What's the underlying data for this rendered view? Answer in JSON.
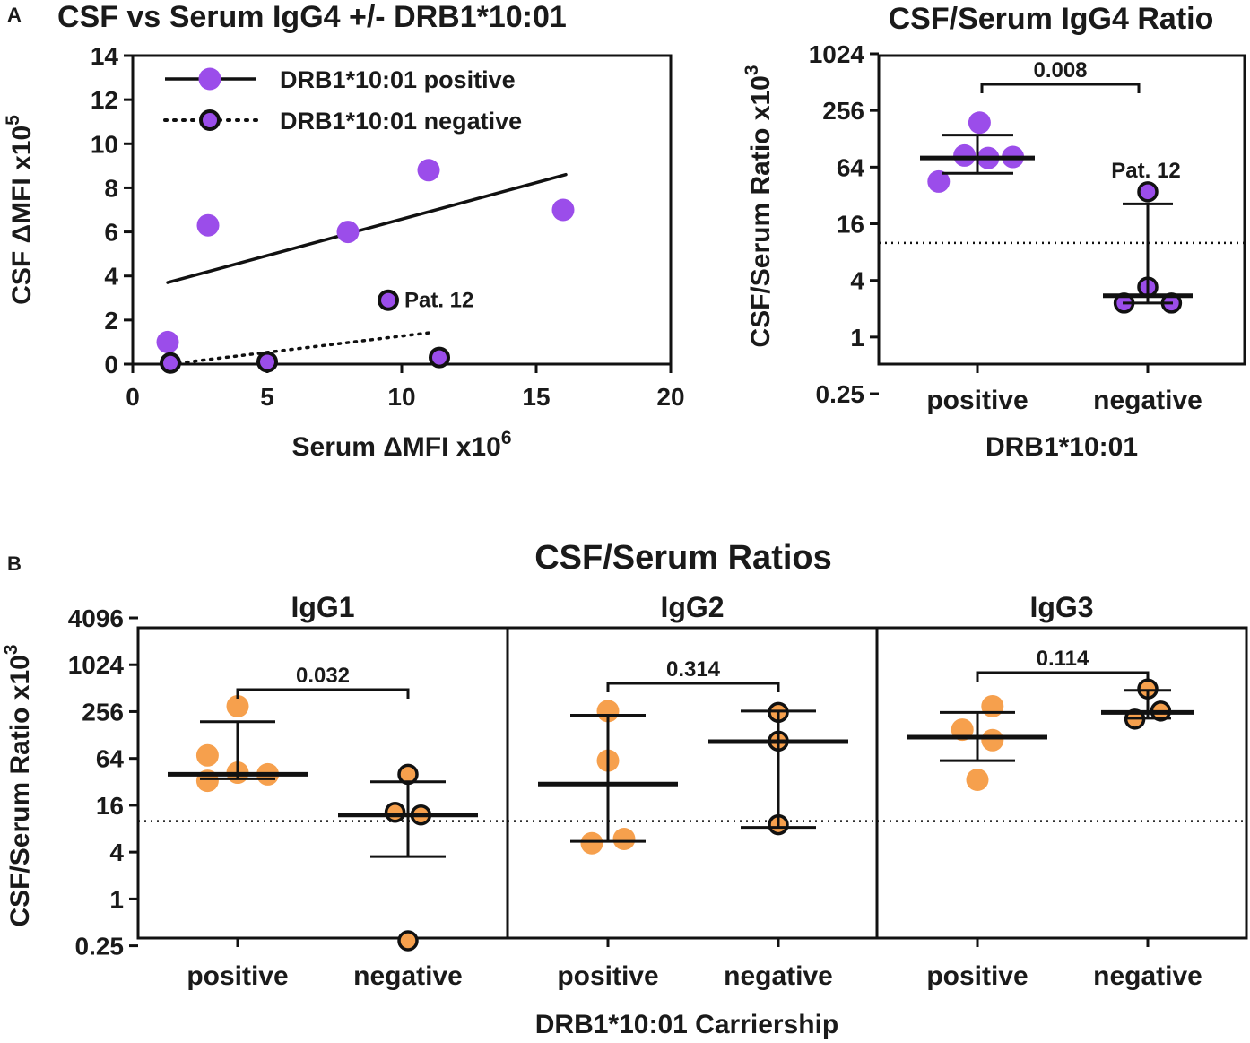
{
  "colors": {
    "purple": "#9b4dea",
    "orange": "#f6a04d",
    "outline": "#111111",
    "axis": "#111111"
  },
  "panel_a_label": "A",
  "panel_b_label": "B",
  "chart_data": [
    {
      "id": "scatter",
      "type": "scatter",
      "title": "CSF vs Serum IgG4 +/- DRB1*10:01",
      "xlabel": "Serum ΔMFI  x10",
      "xlabel_exp": "6",
      "ylabel": "CSF ΔMFI  x10",
      "ylabel_exp": "5",
      "xlim": [
        0,
        20
      ],
      "ylim": [
        0,
        14
      ],
      "xticks": [
        0,
        5,
        10,
        15,
        20
      ],
      "yticks": [
        0,
        2,
        4,
        6,
        8,
        10,
        12,
        14
      ],
      "legend_position": "top-left",
      "annotation": {
        "text": "Pat. 12",
        "x": 9.5,
        "y": 2.9
      },
      "series": [
        {
          "name": "DRB1*10:01 positive",
          "style": "solid",
          "points": [
            {
              "x": 1.3,
              "y": 1.0
            },
            {
              "x": 2.8,
              "y": 6.3
            },
            {
              "x": 8.0,
              "y": 6.0
            },
            {
              "x": 11.0,
              "y": 8.8
            },
            {
              "x": 16.0,
              "y": 7.0
            }
          ],
          "fit": {
            "x": [
              1.3,
              16.1
            ],
            "y": [
              3.7,
              8.6
            ]
          }
        },
        {
          "name": "DRB1*10:01 negative",
          "style": "dotted",
          "points": [
            {
              "x": 1.4,
              "y": 0.05
            },
            {
              "x": 5.0,
              "y": 0.1
            },
            {
              "x": 9.5,
              "y": 2.9
            },
            {
              "x": 11.4,
              "y": 0.3
            }
          ],
          "fit": {
            "x": [
              1.4,
              11.2
            ],
            "y": [
              0.0,
              1.45
            ]
          }
        }
      ]
    },
    {
      "id": "igg4ratio",
      "type": "scatter",
      "title": "CSF/Serum IgG4 Ratio",
      "ylabel": "CSF/Serum Ratio x10",
      "ylabel_exp": "3",
      "xlabel": "DRB1*10:01",
      "yscale": "log2",
      "ylim": [
        0.18,
        1024
      ],
      "yticks": [
        0.25,
        1,
        4,
        16,
        64,
        256,
        1024
      ],
      "ytick_labels": [
        "0.25",
        "1",
        "4",
        "16",
        "64",
        "256",
        "1024"
      ],
      "categories": [
        "positive",
        "negative"
      ],
      "threshold": 10,
      "pvalue": "0.008",
      "annotation": {
        "text": "Pat. 12",
        "category": "negative",
        "y": 35
      },
      "groups": [
        {
          "name": "positive",
          "median": 80,
          "q1": 55,
          "q3": 140,
          "points": [
            {
              "dx": -0.36,
              "y": 45
            },
            {
              "dx": -0.12,
              "y": 85
            },
            {
              "dx": 0.02,
              "y": 190
            },
            {
              "dx": 0.1,
              "y": 80
            },
            {
              "dx": 0.33,
              "y": 82
            }
          ]
        },
        {
          "name": "negative",
          "median": 2.75,
          "q1": 2.3,
          "q3": 26,
          "points": [
            {
              "dx": -0.22,
              "y": 2.3
            },
            {
              "dx": 0.0,
              "y": 3.4
            },
            {
              "dx": 0.22,
              "y": 2.3
            },
            {
              "dx": 0.0,
              "y": 35
            }
          ]
        }
      ]
    },
    {
      "id": "ratios",
      "type": "scatter",
      "title": "CSF/Serum Ratios",
      "ylabel": "CSF/Serum Ratio x10",
      "ylabel_exp": "3",
      "xlabel": "DRB1*10:01 Carriership",
      "yscale": "log2",
      "ylim": [
        0.2,
        4096
      ],
      "yticks": [
        0.25,
        1,
        4,
        16,
        64,
        256,
        1024,
        4096
      ],
      "ytick_labels": [
        "0.25",
        "1",
        "4",
        "16",
        "64",
        "256",
        "1024",
        "4096"
      ],
      "threshold": 10,
      "categories": [
        "positive",
        "negative"
      ],
      "panels": [
        {
          "name": "IgG1",
          "pvalue": "0.032",
          "groups": [
            {
              "name": "positive",
              "median": 40,
              "q1": 35,
              "q3": 190,
              "points": [
                {
                  "dx": -0.28,
                  "y": 70
                },
                {
                  "dx": -0.28,
                  "y": 33
                },
                {
                  "dx": 0.0,
                  "y": 300
                },
                {
                  "dx": 0.0,
                  "y": 42
                },
                {
                  "dx": 0.28,
                  "y": 40
                }
              ]
            },
            {
              "name": "negative",
              "median": 12,
              "q1": 3.5,
              "q3": 32,
              "points": [
                {
                  "dx": 0.0,
                  "y": 40
                },
                {
                  "dx": -0.12,
                  "y": 13
                },
                {
                  "dx": 0.12,
                  "y": 12
                },
                {
                  "dx": 0.0,
                  "y": 0.29
                }
              ]
            }
          ]
        },
        {
          "name": "IgG2",
          "pvalue": "0.314",
          "groups": [
            {
              "name": "positive",
              "median": 30,
              "q1": 5.5,
              "q3": 230,
              "points": [
                {
                  "dx": 0.0,
                  "y": 260
                },
                {
                  "dx": 0.0,
                  "y": 60
                },
                {
                  "dx": -0.15,
                  "y": 5.2
                },
                {
                  "dx": 0.15,
                  "y": 5.9
                }
              ]
            },
            {
              "name": "negative",
              "median": 105,
              "q1": 8.3,
              "q3": 260,
              "points": [
                {
                  "dx": 0.0,
                  "y": 250
                },
                {
                  "dx": 0.0,
                  "y": 107
                },
                {
                  "dx": 0.0,
                  "y": 9
                }
              ]
            }
          ]
        },
        {
          "name": "IgG3",
          "pvalue": "0.114",
          "groups": [
            {
              "name": "positive",
              "median": 120,
              "q1": 60,
              "q3": 250,
              "points": [
                {
                  "dx": 0.14,
                  "y": 300
                },
                {
                  "dx": -0.14,
                  "y": 150
                },
                {
                  "dx": 0.14,
                  "y": 110
                },
                {
                  "dx": 0.0,
                  "y": 34
                }
              ]
            },
            {
              "name": "negative",
              "median": 250,
              "q1": 210,
              "q3": 480,
              "points": [
                {
                  "dx": 0.0,
                  "y": 500
                },
                {
                  "dx": -0.12,
                  "y": 205
                },
                {
                  "dx": 0.12,
                  "y": 260
                }
              ]
            }
          ]
        }
      ]
    }
  ]
}
